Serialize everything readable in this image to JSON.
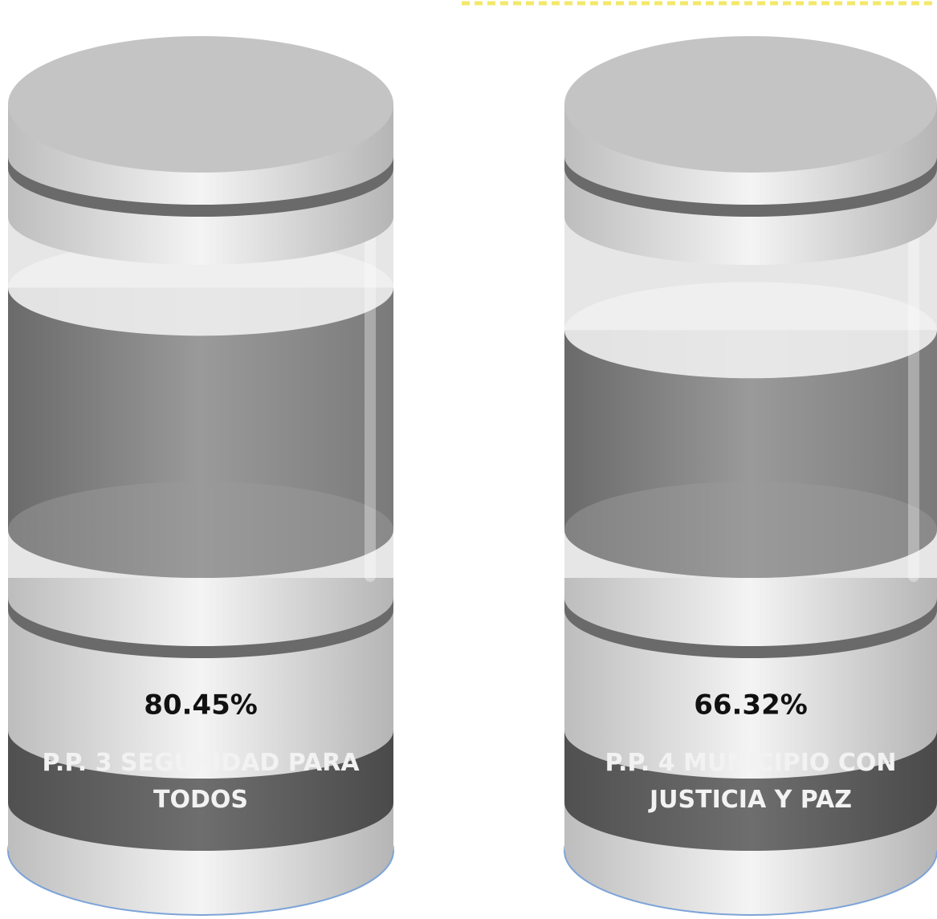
{
  "chart_data": {
    "type": "cylinder",
    "categories": [
      "P.P. 3 SEGURIDAD PARA TODOS",
      "P.P. 4 MUNICIPIO CON JUSTICIA Y PAZ"
    ],
    "values": [
      80.45,
      66.32
    ],
    "value_labels": [
      "80.45%",
      "66.32%"
    ],
    "color": "#8a8a8a"
  }
}
